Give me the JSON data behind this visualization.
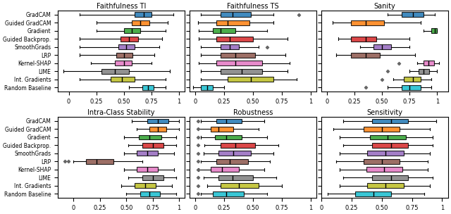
{
  "methods": [
    "GradCAM",
    "Guided GradCAM",
    "Gradient",
    "Guided Backprop.",
    "SmoothGrads",
    "LRP",
    "Kernel-SHAP",
    "LIME",
    "Int. Gradients",
    "Random Baseline"
  ],
  "colors": [
    "#1f77b4",
    "#ff7f0e",
    "#2ca02c",
    "#d62728",
    "#9467bd",
    "#8c564b",
    "#e377c2",
    "#7f7f7f",
    "#bcbd22",
    "#17becf"
  ],
  "titles": [
    "Faithfulness TI",
    "Faithfulness TS",
    "Sanity",
    "Intra-Class Stability",
    "Robustness",
    "Sensitivity"
  ],
  "panel_data": {
    "Faithfulness TI": {
      "boxes": [
        [
          0.1,
          0.6,
          0.68,
          0.75,
          0.95
        ],
        [
          0.25,
          0.57,
          0.65,
          0.73,
          0.9
        ],
        [
          0.25,
          0.5,
          0.57,
          0.65,
          0.88
        ],
        [
          0.1,
          0.47,
          0.55,
          0.63,
          0.85
        ],
        [
          0.1,
          0.45,
          0.52,
          0.6,
          0.82
        ],
        [
          0.1,
          0.43,
          0.5,
          0.58,
          0.78
        ],
        [
          0.2,
          0.42,
          0.5,
          0.57,
          0.75
        ],
        [
          -0.05,
          0.3,
          0.42,
          0.55,
          0.92
        ],
        [
          0.1,
          0.38,
          0.48,
          0.6,
          0.88
        ],
        [
          0.55,
          0.67,
          0.72,
          0.77,
          0.88
        ]
      ],
      "fliers": [
        [],
        [],
        [],
        [],
        [],
        [],
        [],
        [],
        [],
        []
      ],
      "xlim": [
        -0.1,
        1.05
      ],
      "xticks": [
        0.0,
        0.25,
        0.5,
        0.75,
        1.0
      ]
    },
    "Faithfulness TS": {
      "boxes": [
        [
          0.05,
          0.22,
          0.32,
          0.48,
          0.68
        ],
        [
          0.02,
          0.18,
          0.28,
          0.47,
          0.68
        ],
        [
          0.03,
          0.15,
          0.22,
          0.35,
          0.62
        ],
        [
          0.03,
          0.18,
          0.3,
          0.5,
          0.8
        ],
        [
          0.05,
          0.22,
          0.3,
          0.38,
          0.55
        ],
        [
          0.05,
          0.22,
          0.35,
          0.52,
          0.78
        ],
        [
          0.03,
          0.18,
          0.35,
          0.58,
          0.82
        ],
        [
          0.05,
          0.22,
          0.4,
          0.58,
          0.8
        ],
        [
          0.05,
          0.28,
          0.48,
          0.68,
          0.88
        ],
        [
          -0.02,
          0.05,
          0.1,
          0.15,
          0.25
        ]
      ],
      "fliers": [
        [
          0.9
        ],
        [],
        [],
        [],
        [
          0.62
        ],
        [],
        [],
        [],
        [],
        []
      ],
      "xlim": [
        -0.05,
        1.05
      ],
      "xticks": [
        0.0,
        0.25,
        0.5,
        0.75,
        1.0
      ]
    },
    "Sanity": {
      "boxes": [
        [
          0.55,
          0.68,
          0.78,
          0.88,
          0.98
        ],
        [
          0.05,
          0.22,
          0.35,
          0.52,
          0.85
        ],
        [
          0.88,
          0.95,
          0.98,
          1.0,
          1.0
        ],
        [
          0.1,
          0.22,
          0.35,
          0.45,
          0.75
        ],
        [
          0.3,
          0.42,
          0.5,
          0.58,
          0.75
        ],
        [
          0.08,
          0.22,
          0.35,
          0.48,
          0.8
        ],
        [
          0.82,
          0.88,
          0.92,
          0.97,
          1.02
        ],
        [
          0.75,
          0.83,
          0.88,
          0.93,
          1.0
        ],
        [
          0.6,
          0.7,
          0.78,
          0.85,
          0.95
        ],
        [
          0.55,
          0.68,
          0.75,
          0.85,
          0.95
        ]
      ],
      "fliers": [
        [],
        [],
        [],
        [],
        [],
        [],
        [
          0.65
        ],
        [
          0.55
        ],
        [
          0.5
        ],
        [
          0.35
        ]
      ],
      "xlim": [
        -0.05,
        1.1
      ],
      "xticks": [
        0.0,
        0.25,
        0.5,
        0.75,
        1.0
      ]
    },
    "Intra-Class Stability": {
      "boxes": [
        [
          0.55,
          0.7,
          0.8,
          0.9,
          1.0
        ],
        [
          0.6,
          0.72,
          0.8,
          0.88,
          1.0
        ],
        [
          0.48,
          0.62,
          0.72,
          0.83,
          0.97
        ],
        [
          0.52,
          0.65,
          0.75,
          0.85,
          0.97
        ],
        [
          0.48,
          0.6,
          0.7,
          0.8,
          0.95
        ],
        [
          0.0,
          0.12,
          0.22,
          0.38,
          0.65
        ],
        [
          0.48,
          0.6,
          0.7,
          0.8,
          0.95
        ],
        [
          0.52,
          0.65,
          0.75,
          0.85,
          0.97
        ],
        [
          0.45,
          0.58,
          0.68,
          0.78,
          0.93
        ],
        [
          0.5,
          0.63,
          0.72,
          0.82,
          0.97
        ]
      ],
      "fliers": [
        [],
        [],
        [],
        [],
        [],
        [
          -0.05,
          -0.08
        ],
        [],
        [],
        [],
        []
      ],
      "xlim": [
        -0.15,
        1.05
      ],
      "xticks": [
        0.0,
        0.25,
        0.5,
        0.75,
        1.0
      ]
    },
    "Robustness": {
      "boxes": [
        [
          0.05,
          0.18,
          0.27,
          0.4,
          0.6
        ],
        [
          0.02,
          0.13,
          0.2,
          0.33,
          0.55
        ],
        [
          0.05,
          0.17,
          0.27,
          0.4,
          0.62
        ],
        [
          0.08,
          0.22,
          0.35,
          0.52,
          0.72
        ],
        [
          0.07,
          0.2,
          0.33,
          0.48,
          0.68
        ],
        [
          0.05,
          0.18,
          0.3,
          0.46,
          0.65
        ],
        [
          0.03,
          0.13,
          0.23,
          0.38,
          0.6
        ],
        [
          0.07,
          0.2,
          0.32,
          0.5,
          0.7
        ],
        [
          0.1,
          0.22,
          0.38,
          0.55,
          0.75
        ],
        [
          0.05,
          0.15,
          0.27,
          0.42,
          0.62
        ]
      ],
      "fliers": [
        [
          0.02
        ],
        [
          0.02
        ],
        [
          0.02
        ],
        [
          0.02
        ],
        [
          0.02
        ],
        [
          0.02
        ],
        [
          0.02
        ],
        [
          0.02
        ],
        [
          0.02
        ],
        [
          0.02
        ]
      ],
      "xlim": [
        -0.05,
        1.05
      ],
      "xticks": [
        0.0,
        0.25,
        0.5,
        0.75,
        1.0
      ]
    },
    "Sensitivity": {
      "boxes": [
        [
          0.18,
          0.42,
          0.58,
          0.72,
          0.95
        ],
        [
          0.1,
          0.35,
          0.5,
          0.65,
          0.9
        ],
        [
          0.15,
          0.4,
          0.55,
          0.7,
          0.92
        ],
        [
          0.18,
          0.42,
          0.58,
          0.72,
          0.92
        ],
        [
          0.15,
          0.38,
          0.53,
          0.68,
          0.9
        ],
        [
          0.12,
          0.35,
          0.5,
          0.65,
          0.88
        ],
        [
          0.15,
          0.37,
          0.52,
          0.67,
          0.88
        ],
        [
          0.18,
          0.42,
          0.58,
          0.72,
          0.92
        ],
        [
          0.15,
          0.38,
          0.53,
          0.68,
          0.9
        ],
        [
          0.05,
          0.28,
          0.43,
          0.58,
          0.85
        ]
      ],
      "fliers": [
        [],
        [],
        [],
        [],
        [],
        [],
        [],
        [],
        [],
        []
      ],
      "xlim": [
        0.0,
        1.05
      ],
      "xticks": [
        0.0,
        0.25,
        0.5,
        0.75,
        1.0
      ]
    }
  }
}
